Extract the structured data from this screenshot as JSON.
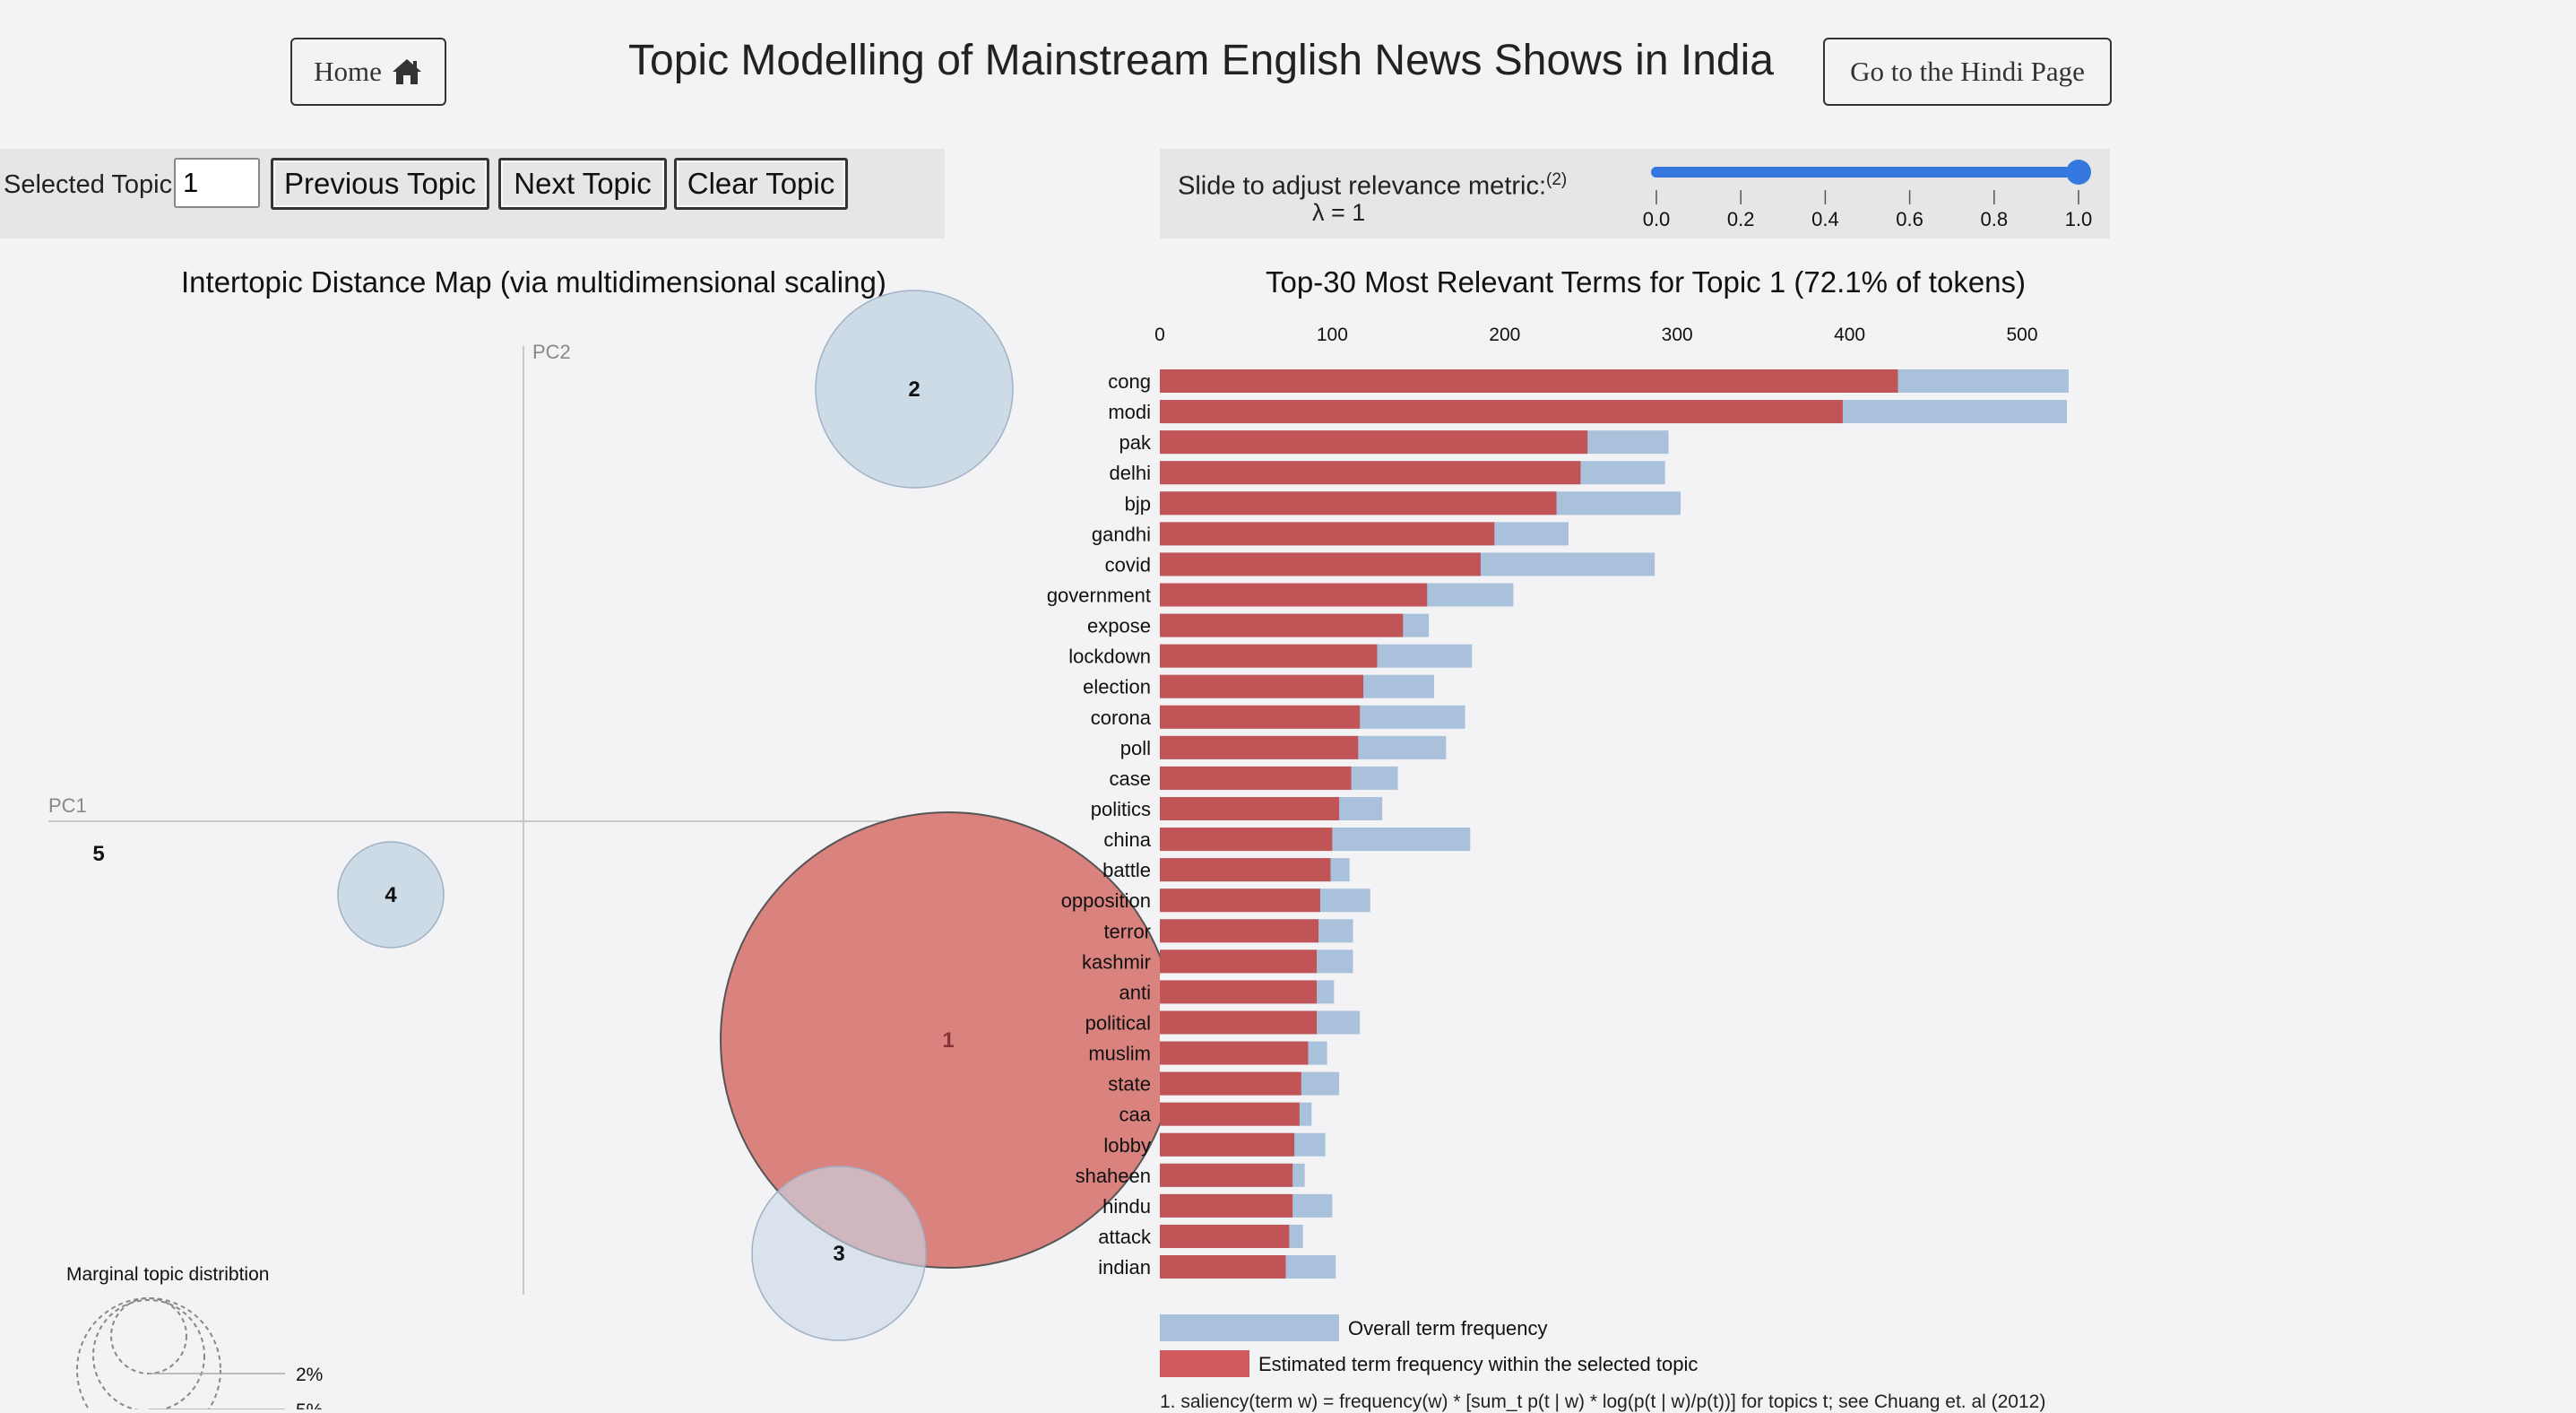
{
  "header": {
    "home_label": "Home",
    "title": "Topic Modelling of Mainstream English News Shows in India",
    "hindi_label": "Go to the Hindi Page"
  },
  "controls": {
    "selected_topic_label": "Selected Topic:",
    "selected_topic_value": "1",
    "previous_label": "Previous Topic",
    "next_label": "Next Topic",
    "clear_label": "Clear Topic"
  },
  "slider": {
    "label": "Slide to adjust relevance metric:",
    "footnote_ref": "(2)",
    "lambda_text": "λ = 1",
    "value": 1.0,
    "min": 0,
    "max": 1,
    "ticks": [
      "0.0",
      "0.2",
      "0.4",
      "0.6",
      "0.8",
      "1.0"
    ],
    "accent_color": "#3478e0"
  },
  "intertopic": {
    "title": "Intertopic Distance Map (via multidimensional scaling)",
    "pc1_label": "PC1",
    "pc2_label": "PC2",
    "selected_color": "#d9827e",
    "topic_color": "#c9d8e6",
    "topics": [
      {
        "id": "1",
        "selected": true
      },
      {
        "id": "2",
        "selected": false
      },
      {
        "id": "3",
        "selected": false
      },
      {
        "id": "4",
        "selected": false
      },
      {
        "id": "5",
        "selected": false
      }
    ],
    "marginal_title": "Marginal topic distribtion",
    "marginal_labels": [
      "2%",
      "5%"
    ]
  },
  "chart_data": {
    "type": "bar",
    "title": "Top-30 Most Relevant Terms for Topic 1 (72.1% of tokens)",
    "xlim": [
      0,
      530
    ],
    "x_ticks": [
      0,
      100,
      200,
      300,
      400,
      500
    ],
    "categories": [
      "cong",
      "modi",
      "pak",
      "delhi",
      "bjp",
      "gandhi",
      "covid",
      "government",
      "expose",
      "lockdown",
      "election",
      "corona",
      "poll",
      "case",
      "politics",
      "china",
      "battle",
      "opposition",
      "terror",
      "kashmir",
      "anti",
      "political",
      "muslim",
      "state",
      "caa",
      "lobby",
      "shaheen",
      "hindu",
      "attack",
      "indian"
    ],
    "series": [
      {
        "name": "Overall term frequency",
        "color": "#a9c1da",
        "values": [
          527,
          526,
          295,
          293,
          302,
          237,
          287,
          205,
          156,
          181,
          159,
          177,
          166,
          138,
          129,
          180,
          110,
          122,
          112,
          112,
          101,
          116,
          97,
          104,
          88,
          96,
          84,
          100,
          83,
          102
        ]
      },
      {
        "name": "Estimated term frequency within the selected topic",
        "color": "#c05457",
        "values": [
          428,
          396,
          248,
          244,
          230,
          194,
          186,
          155,
          141,
          126,
          118,
          116,
          115,
          111,
          104,
          100,
          99,
          93,
          92,
          91,
          91,
          91,
          86,
          82,
          81,
          78,
          77,
          77,
          75,
          73
        ]
      }
    ],
    "legend": [
      {
        "label": "Overall term frequency",
        "color": "#a9c1da"
      },
      {
        "label": "Estimated term frequency within the selected topic",
        "color": "#d05a5c"
      }
    ]
  },
  "footnote": "1. saliency(term w) = frequency(w) * [sum_t p(t | w) * log(p(t | w)/p(t))] for topics t; see Chuang et. al (2012)"
}
